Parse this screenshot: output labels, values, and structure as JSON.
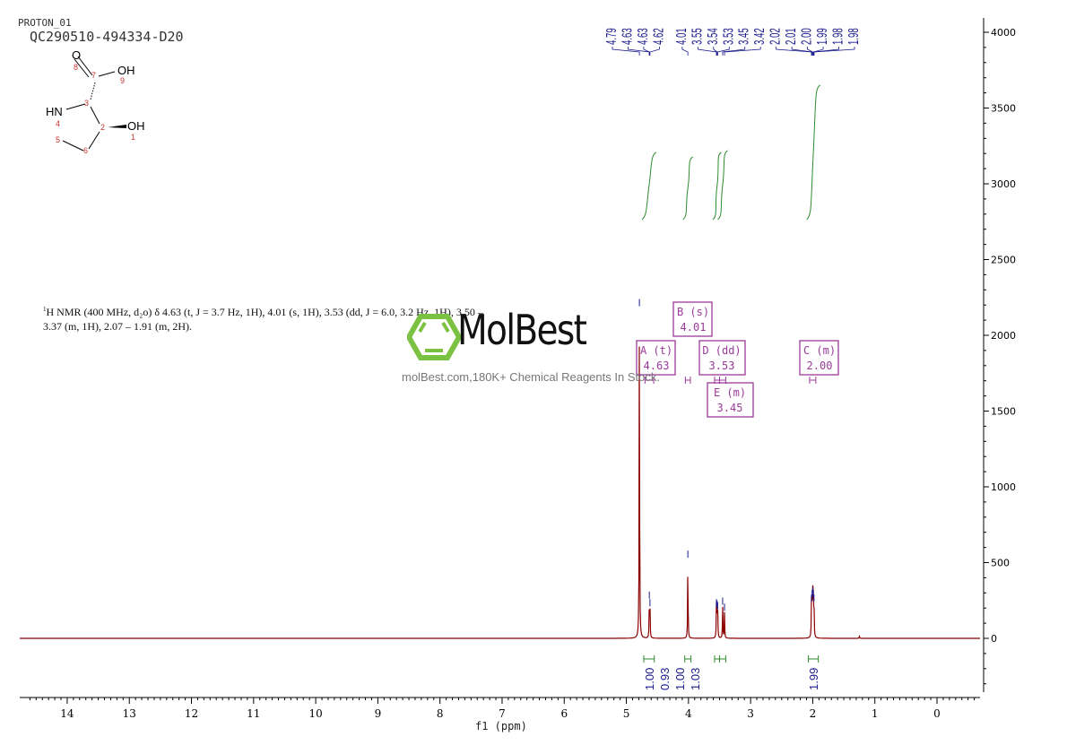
{
  "header": {
    "experiment": "PROTON_01",
    "sample": "QC290510-494334-D20"
  },
  "molecule": {
    "atoms": [
      "O",
      "OH",
      "HN",
      "OH"
    ],
    "atom_numbers": [
      "8",
      "7",
      "9",
      "3",
      "4",
      "2",
      "1",
      "5",
      "6"
    ]
  },
  "description": {
    "line1": "H NMR (400 MHz, d₂o) δ 4.63 (t, J = 3.7 Hz, 1H), 4.01 (s, 1H), 3.53 (dd, J = 6.0, 3.2 Hz, 1H), 3.50 –",
    "line1_sup": "1",
    "line2": "3.37 (m, 1H), 2.07 – 1.91 (m, 2H)."
  },
  "watermark": {
    "brand": "MolBest",
    "tagline": "molBest.com,180K+ Chemical Reagents In Stock."
  },
  "chart_data": {
    "type": "line",
    "xlabel": "f1 (ppm)",
    "xlim": [
      14.75,
      -0.7
    ],
    "ylim": [
      -400,
      4100
    ],
    "x_ticks": [
      14,
      13,
      12,
      11,
      10,
      9,
      8,
      7,
      6,
      5,
      4,
      3,
      2,
      1,
      0
    ],
    "y_ticks": [
      0,
      500,
      1000,
      1500,
      2000,
      2500,
      3000,
      3500,
      4000
    ],
    "colors": {
      "spectrum": "#8b0000",
      "peak_labels": "#1a1a8c",
      "integrals": "#2e8b2e",
      "multiplets": "#9b3a9b"
    },
    "peaks": [
      {
        "ppm": 4.79,
        "height": 2180
      },
      {
        "ppm": 4.63,
        "height": 250
      },
      {
        "ppm": 4.62,
        "height": 200
      },
      {
        "ppm": 4.01,
        "height": 520
      },
      {
        "ppm": 3.55,
        "height": 200
      },
      {
        "ppm": 3.54,
        "height": 190
      },
      {
        "ppm": 3.53,
        "height": 180
      },
      {
        "ppm": 3.45,
        "height": 210
      },
      {
        "ppm": 3.42,
        "height": 170
      },
      {
        "ppm": 2.02,
        "height": 230
      },
      {
        "ppm": 2.01,
        "height": 260
      },
      {
        "ppm": 2.0,
        "height": 280
      },
      {
        "ppm": 1.99,
        "height": 260
      },
      {
        "ppm": 1.98,
        "height": 230
      },
      {
        "ppm": 1.25,
        "height": 15
      }
    ],
    "peak_labels": [
      "4.79",
      "4.63",
      "4.63",
      "4.62",
      "4.01",
      "3.55",
      "3.54",
      "3.53",
      "3.45",
      "3.42",
      "2.02",
      "2.01",
      "2.00",
      "1.99",
      "1.98",
      "1.98"
    ],
    "integrals": [
      {
        "from": 4.72,
        "to": 4.55,
        "value": "1.00"
      },
      {
        "from": 4.06,
        "to": 3.96,
        "value": "0.93"
      },
      {
        "from": 3.58,
        "to": 3.5,
        "value": "1.00"
      },
      {
        "from": 3.5,
        "to": 3.4,
        "value": "1.03"
      },
      {
        "from": 2.07,
        "to": 1.91,
        "value": "1.99"
      }
    ],
    "multiplets": [
      {
        "label": "A (t)",
        "shift": "4.63"
      },
      {
        "label": "B (s)",
        "shift": "4.01"
      },
      {
        "label": "D (dd)",
        "shift": "3.53"
      },
      {
        "label": "E (m)",
        "shift": "3.45"
      },
      {
        "label": "C (m)",
        "shift": "2.00"
      }
    ]
  }
}
